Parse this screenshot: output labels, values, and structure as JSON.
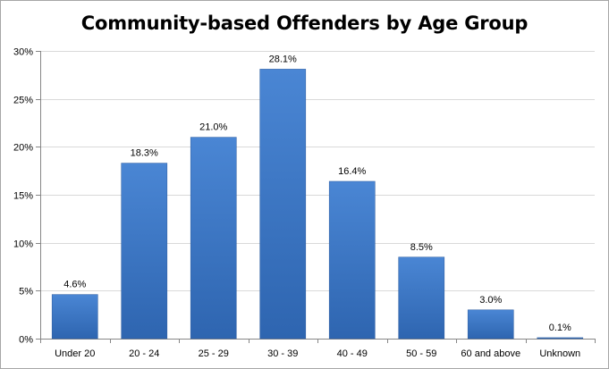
{
  "chart_data": {
    "type": "bar",
    "title": "Community-based Offenders by Age Group",
    "xlabel": "",
    "ylabel": "",
    "categories": [
      "Under 20",
      "20 - 24",
      "25 - 29",
      "30 - 39",
      "40 - 49",
      "50 - 59",
      "60 and above",
      "Unknown"
    ],
    "values": [
      4.6,
      18.3,
      21.0,
      28.1,
      16.4,
      8.5,
      3.0,
      0.1
    ],
    "data_labels": [
      "4.6%",
      "18.3%",
      "21.0%",
      "28.1%",
      "16.4%",
      "8.5%",
      "3.0%",
      "0.1%"
    ],
    "ylim": [
      0,
      30
    ],
    "yticks": [
      0,
      5,
      10,
      15,
      20,
      25,
      30
    ],
    "ytick_labels": [
      "0%",
      "5%",
      "10%",
      "15%",
      "20%",
      "25%",
      "30%"
    ],
    "grid": true,
    "legend": "none",
    "colors": {
      "bar_top": "#4a86d4",
      "bar_bottom": "#2e65b0",
      "bar_edge": "#2a5a9e",
      "gridline": "#d9d9d9",
      "axis": "#868686"
    }
  }
}
